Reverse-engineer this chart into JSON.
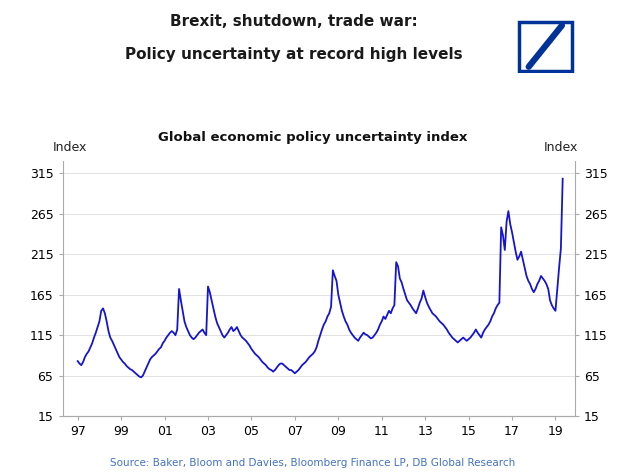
{
  "title_line1": "Brexit, shutdown, trade war:",
  "title_line2": "Policy uncertainty at record high levels",
  "subtitle": "Global economic policy uncertainty index",
  "ylabel_left": "Index",
  "ylabel_right": "Index",
  "source": "Source: Baker, Bloom and Davies, Bloomberg Finance LP, DB Global Research",
  "line_color": "#1515d0",
  "background_color": "#ffffff",
  "ylim": [
    15,
    330
  ],
  "yticks": [
    15,
    65,
    115,
    165,
    215,
    265,
    315
  ],
  "xtick_labels": [
    "97",
    "99",
    "01",
    "03",
    "05",
    "07",
    "09",
    "11",
    "13",
    "15",
    "17",
    "19"
  ],
  "title_color": "#1a1a1a",
  "source_color": "#4472c4",
  "logo_box_color": "#003399",
  "logo_slash_color": "#ffffff",
  "spine_color": "#aaaaaa",
  "grid_color": "#dddddd",
  "data": [
    [
      1997.0,
      83
    ],
    [
      1997.083,
      80
    ],
    [
      1997.167,
      78
    ],
    [
      1997.25,
      82
    ],
    [
      1997.333,
      88
    ],
    [
      1997.417,
      92
    ],
    [
      1997.5,
      95
    ],
    [
      1997.583,
      100
    ],
    [
      1997.667,
      105
    ],
    [
      1997.75,
      112
    ],
    [
      1997.833,
      118
    ],
    [
      1997.917,
      125
    ],
    [
      1998.0,
      132
    ],
    [
      1998.083,
      145
    ],
    [
      1998.167,
      148
    ],
    [
      1998.25,
      142
    ],
    [
      1998.333,
      132
    ],
    [
      1998.417,
      120
    ],
    [
      1998.5,
      112
    ],
    [
      1998.583,
      108
    ],
    [
      1998.667,
      103
    ],
    [
      1998.75,
      98
    ],
    [
      1998.833,
      93
    ],
    [
      1998.917,
      88
    ],
    [
      1999.0,
      85
    ],
    [
      1999.083,
      82
    ],
    [
      1999.167,
      80
    ],
    [
      1999.25,
      77
    ],
    [
      1999.333,
      75
    ],
    [
      1999.417,
      73
    ],
    [
      1999.5,
      72
    ],
    [
      1999.583,
      70
    ],
    [
      1999.667,
      68
    ],
    [
      1999.75,
      66
    ],
    [
      1999.833,
      64
    ],
    [
      1999.917,
      63
    ],
    [
      2000.0,
      65
    ],
    [
      2000.083,
      70
    ],
    [
      2000.167,
      75
    ],
    [
      2000.25,
      80
    ],
    [
      2000.333,
      85
    ],
    [
      2000.417,
      88
    ],
    [
      2000.5,
      90
    ],
    [
      2000.583,
      92
    ],
    [
      2000.667,
      95
    ],
    [
      2000.75,
      98
    ],
    [
      2000.833,
      100
    ],
    [
      2000.917,
      105
    ],
    [
      2001.0,
      108
    ],
    [
      2001.083,
      112
    ],
    [
      2001.167,
      115
    ],
    [
      2001.25,
      118
    ],
    [
      2001.333,
      120
    ],
    [
      2001.417,
      118
    ],
    [
      2001.5,
      115
    ],
    [
      2001.583,
      122
    ],
    [
      2001.667,
      172
    ],
    [
      2001.75,
      158
    ],
    [
      2001.833,
      145
    ],
    [
      2001.917,
      132
    ],
    [
      2002.0,
      125
    ],
    [
      2002.083,
      120
    ],
    [
      2002.167,
      115
    ],
    [
      2002.25,
      112
    ],
    [
      2002.333,
      110
    ],
    [
      2002.417,
      112
    ],
    [
      2002.5,
      115
    ],
    [
      2002.583,
      118
    ],
    [
      2002.667,
      120
    ],
    [
      2002.75,
      122
    ],
    [
      2002.833,
      118
    ],
    [
      2002.917,
      115
    ],
    [
      2003.0,
      175
    ],
    [
      2003.083,
      168
    ],
    [
      2003.167,
      158
    ],
    [
      2003.25,
      148
    ],
    [
      2003.333,
      138
    ],
    [
      2003.417,
      130
    ],
    [
      2003.5,
      125
    ],
    [
      2003.583,
      120
    ],
    [
      2003.667,
      115
    ],
    [
      2003.75,
      112
    ],
    [
      2003.833,
      115
    ],
    [
      2003.917,
      118
    ],
    [
      2004.0,
      122
    ],
    [
      2004.083,
      125
    ],
    [
      2004.167,
      120
    ],
    [
      2004.25,
      122
    ],
    [
      2004.333,
      125
    ],
    [
      2004.417,
      120
    ],
    [
      2004.5,
      115
    ],
    [
      2004.583,
      112
    ],
    [
      2004.667,
      110
    ],
    [
      2004.75,
      108
    ],
    [
      2004.833,
      105
    ],
    [
      2004.917,
      102
    ],
    [
      2005.0,
      98
    ],
    [
      2005.083,
      95
    ],
    [
      2005.167,
      92
    ],
    [
      2005.25,
      90
    ],
    [
      2005.333,
      88
    ],
    [
      2005.417,
      85
    ],
    [
      2005.5,
      82
    ],
    [
      2005.583,
      80
    ],
    [
      2005.667,
      78
    ],
    [
      2005.75,
      75
    ],
    [
      2005.833,
      73
    ],
    [
      2005.917,
      72
    ],
    [
      2006.0,
      70
    ],
    [
      2006.083,
      72
    ],
    [
      2006.167,
      75
    ],
    [
      2006.25,
      78
    ],
    [
      2006.333,
      80
    ],
    [
      2006.417,
      80
    ],
    [
      2006.5,
      78
    ],
    [
      2006.583,
      76
    ],
    [
      2006.667,
      74
    ],
    [
      2006.75,
      72
    ],
    [
      2006.833,
      72
    ],
    [
      2006.917,
      70
    ],
    [
      2007.0,
      68
    ],
    [
      2007.083,
      70
    ],
    [
      2007.167,
      72
    ],
    [
      2007.25,
      75
    ],
    [
      2007.333,
      78
    ],
    [
      2007.417,
      80
    ],
    [
      2007.5,
      82
    ],
    [
      2007.583,
      85
    ],
    [
      2007.667,
      88
    ],
    [
      2007.75,
      90
    ],
    [
      2007.833,
      92
    ],
    [
      2007.917,
      95
    ],
    [
      2008.0,
      100
    ],
    [
      2008.083,
      108
    ],
    [
      2008.167,
      115
    ],
    [
      2008.25,
      122
    ],
    [
      2008.333,
      128
    ],
    [
      2008.417,
      132
    ],
    [
      2008.5,
      138
    ],
    [
      2008.583,
      142
    ],
    [
      2008.667,
      150
    ],
    [
      2008.75,
      195
    ],
    [
      2008.833,
      188
    ],
    [
      2008.917,
      182
    ],
    [
      2009.0,
      165
    ],
    [
      2009.083,
      155
    ],
    [
      2009.167,
      145
    ],
    [
      2009.25,
      138
    ],
    [
      2009.333,
      132
    ],
    [
      2009.417,
      128
    ],
    [
      2009.5,
      122
    ],
    [
      2009.583,
      118
    ],
    [
      2009.667,
      115
    ],
    [
      2009.75,
      112
    ],
    [
      2009.833,
      110
    ],
    [
      2009.917,
      108
    ],
    [
      2010.0,
      112
    ],
    [
      2010.083,
      115
    ],
    [
      2010.167,
      118
    ],
    [
      2010.25,
      116
    ],
    [
      2010.333,
      115
    ],
    [
      2010.417,
      113
    ],
    [
      2010.5,
      111
    ],
    [
      2010.583,
      112
    ],
    [
      2010.667,
      115
    ],
    [
      2010.75,
      118
    ],
    [
      2010.833,
      122
    ],
    [
      2010.917,
      128
    ],
    [
      2011.0,
      132
    ],
    [
      2011.083,
      138
    ],
    [
      2011.167,
      135
    ],
    [
      2011.25,
      140
    ],
    [
      2011.333,
      145
    ],
    [
      2011.417,
      142
    ],
    [
      2011.5,
      148
    ],
    [
      2011.583,
      152
    ],
    [
      2011.667,
      205
    ],
    [
      2011.75,
      200
    ],
    [
      2011.833,
      185
    ],
    [
      2011.917,
      180
    ],
    [
      2012.0,
      172
    ],
    [
      2012.083,
      165
    ],
    [
      2012.167,
      158
    ],
    [
      2012.25,
      155
    ],
    [
      2012.333,
      152
    ],
    [
      2012.417,
      148
    ],
    [
      2012.5,
      145
    ],
    [
      2012.583,
      142
    ],
    [
      2012.667,
      148
    ],
    [
      2012.75,
      155
    ],
    [
      2012.833,
      160
    ],
    [
      2012.917,
      170
    ],
    [
      2013.0,
      162
    ],
    [
      2013.083,
      155
    ],
    [
      2013.167,
      150
    ],
    [
      2013.25,
      146
    ],
    [
      2013.333,
      142
    ],
    [
      2013.417,
      140
    ],
    [
      2013.5,
      138
    ],
    [
      2013.583,
      135
    ],
    [
      2013.667,
      132
    ],
    [
      2013.75,
      130
    ],
    [
      2013.833,
      128
    ],
    [
      2013.917,
      125
    ],
    [
      2014.0,
      122
    ],
    [
      2014.083,
      118
    ],
    [
      2014.167,
      115
    ],
    [
      2014.25,
      112
    ],
    [
      2014.333,
      110
    ],
    [
      2014.417,
      108
    ],
    [
      2014.5,
      106
    ],
    [
      2014.583,
      108
    ],
    [
      2014.667,
      110
    ],
    [
      2014.75,
      112
    ],
    [
      2014.833,
      110
    ],
    [
      2014.917,
      108
    ],
    [
      2015.0,
      110
    ],
    [
      2015.083,
      112
    ],
    [
      2015.167,
      115
    ],
    [
      2015.25,
      118
    ],
    [
      2015.333,
      122
    ],
    [
      2015.417,
      118
    ],
    [
      2015.5,
      115
    ],
    [
      2015.583,
      112
    ],
    [
      2015.667,
      118
    ],
    [
      2015.75,
      122
    ],
    [
      2015.833,
      125
    ],
    [
      2015.917,
      128
    ],
    [
      2016.0,
      132
    ],
    [
      2016.083,
      138
    ],
    [
      2016.167,
      142
    ],
    [
      2016.25,
      148
    ],
    [
      2016.333,
      152
    ],
    [
      2016.417,
      155
    ],
    [
      2016.5,
      248
    ],
    [
      2016.583,
      238
    ],
    [
      2016.667,
      220
    ],
    [
      2016.75,
      255
    ],
    [
      2016.833,
      268
    ],
    [
      2016.917,
      252
    ],
    [
      2017.0,
      242
    ],
    [
      2017.083,
      230
    ],
    [
      2017.167,
      218
    ],
    [
      2017.25,
      208
    ],
    [
      2017.333,
      212
    ],
    [
      2017.417,
      218
    ],
    [
      2017.5,
      208
    ],
    [
      2017.583,
      198
    ],
    [
      2017.667,
      188
    ],
    [
      2017.75,
      182
    ],
    [
      2017.833,
      178
    ],
    [
      2017.917,
      172
    ],
    [
      2018.0,
      168
    ],
    [
      2018.083,
      172
    ],
    [
      2018.167,
      178
    ],
    [
      2018.25,
      182
    ],
    [
      2018.333,
      188
    ],
    [
      2018.417,
      185
    ],
    [
      2018.5,
      182
    ],
    [
      2018.583,
      178
    ],
    [
      2018.667,
      172
    ],
    [
      2018.75,
      158
    ],
    [
      2018.833,
      152
    ],
    [
      2018.917,
      148
    ],
    [
      2019.0,
      145
    ],
    [
      2019.083,
      172
    ],
    [
      2019.167,
      198
    ],
    [
      2019.25,
      222
    ],
    [
      2019.333,
      308
    ]
  ]
}
